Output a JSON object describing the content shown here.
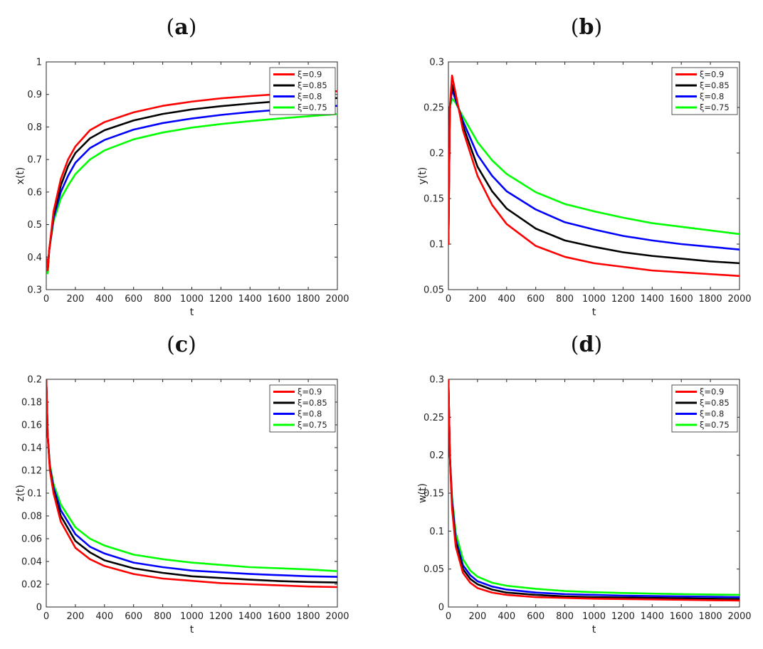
{
  "chart_data": [
    {
      "panel": "a",
      "type": "line",
      "xlabel": "t",
      "ylabel": "x(t)",
      "xlim": [
        0,
        2000
      ],
      "ylim": [
        0.3,
        1
      ],
      "xticks": [
        0,
        200,
        400,
        600,
        800,
        1000,
        1200,
        1400,
        1600,
        1800,
        2000
      ],
      "yticks": [
        0.3,
        0.4,
        0.5,
        0.6,
        0.7,
        0.8,
        0.9,
        1
      ],
      "ytick_labels": [
        "0.3",
        "0.4",
        "0.5",
        "0.6",
        "0.7",
        "0.8",
        "0.9",
        "1"
      ],
      "legend": "top-right",
      "series": [
        {
          "name": "ξ=0.9",
          "color": "#ff0000",
          "x": [
            0,
            10,
            20,
            50,
            100,
            150,
            200,
            300,
            400,
            600,
            800,
            1000,
            1200,
            1400,
            1600,
            1800,
            2000
          ],
          "y": [
            0.4,
            0.36,
            0.42,
            0.54,
            0.64,
            0.7,
            0.74,
            0.79,
            0.815,
            0.845,
            0.865,
            0.878,
            0.888,
            0.895,
            0.901,
            0.906,
            0.91
          ]
        },
        {
          "name": "ξ=0.85",
          "color": "#000000",
          "x": [
            0,
            10,
            20,
            50,
            100,
            150,
            200,
            300,
            400,
            600,
            800,
            1000,
            1200,
            1400,
            1600,
            1800,
            2000
          ],
          "y": [
            0.4,
            0.36,
            0.42,
            0.53,
            0.62,
            0.68,
            0.72,
            0.765,
            0.79,
            0.82,
            0.84,
            0.854,
            0.864,
            0.872,
            0.879,
            0.884,
            0.889
          ]
        },
        {
          "name": "ξ=0.8",
          "color": "#0000ff",
          "x": [
            0,
            10,
            20,
            50,
            100,
            150,
            200,
            300,
            400,
            600,
            800,
            1000,
            1200,
            1400,
            1600,
            1800,
            2000
          ],
          "y": [
            0.4,
            0.36,
            0.42,
            0.52,
            0.6,
            0.65,
            0.69,
            0.735,
            0.76,
            0.792,
            0.812,
            0.826,
            0.837,
            0.846,
            0.853,
            0.859,
            0.865
          ]
        },
        {
          "name": "ξ=0.75",
          "color": "#00ff00",
          "x": [
            0,
            10,
            20,
            50,
            100,
            150,
            200,
            300,
            400,
            600,
            800,
            1000,
            1200,
            1400,
            1600,
            1800,
            2000
          ],
          "y": [
            0.4,
            0.35,
            0.42,
            0.51,
            0.58,
            0.62,
            0.655,
            0.7,
            0.728,
            0.762,
            0.783,
            0.798,
            0.809,
            0.818,
            0.826,
            0.833,
            0.84
          ]
        }
      ]
    },
    {
      "panel": "b",
      "type": "line",
      "xlabel": "t",
      "ylabel": "y(t)",
      "xlim": [
        0,
        2000
      ],
      "ylim": [
        0.05,
        0.3
      ],
      "xticks": [
        0,
        200,
        400,
        600,
        800,
        1000,
        1200,
        1400,
        1600,
        1800,
        2000
      ],
      "yticks": [
        0.05,
        0.1,
        0.15,
        0.2,
        0.25,
        0.3
      ],
      "ytick_labels": [
        "0.05",
        "0.1",
        "0.15",
        "0.2",
        "0.25",
        "0.3"
      ],
      "legend": "top-right",
      "series": [
        {
          "name": "ξ=0.9",
          "color": "#ff0000",
          "x": [
            0,
            10,
            25,
            50,
            100,
            200,
            300,
            400,
            600,
            800,
            1000,
            1200,
            1400,
            1600,
            1800,
            2000
          ],
          "y": [
            0.1,
            0.25,
            0.285,
            0.265,
            0.225,
            0.175,
            0.143,
            0.122,
            0.098,
            0.086,
            0.079,
            0.075,
            0.071,
            0.069,
            0.067,
            0.065
          ]
        },
        {
          "name": "ξ=0.85",
          "color": "#000000",
          "x": [
            0,
            10,
            25,
            50,
            100,
            200,
            300,
            400,
            600,
            800,
            1000,
            1200,
            1400,
            1600,
            1800,
            2000
          ],
          "y": [
            0.1,
            0.25,
            0.275,
            0.262,
            0.23,
            0.185,
            0.158,
            0.139,
            0.117,
            0.104,
            0.097,
            0.091,
            0.087,
            0.084,
            0.081,
            0.079
          ]
        },
        {
          "name": "ξ=0.8",
          "color": "#0000ff",
          "x": [
            0,
            10,
            25,
            50,
            100,
            200,
            300,
            400,
            600,
            800,
            1000,
            1200,
            1400,
            1600,
            1800,
            2000
          ],
          "y": [
            0.1,
            0.25,
            0.27,
            0.258,
            0.235,
            0.198,
            0.175,
            0.158,
            0.138,
            0.124,
            0.116,
            0.109,
            0.104,
            0.1,
            0.097,
            0.094
          ]
        },
        {
          "name": "ξ=0.75",
          "color": "#00ff00",
          "x": [
            0,
            10,
            25,
            50,
            100,
            200,
            300,
            400,
            600,
            800,
            1000,
            1200,
            1400,
            1600,
            1800,
            2000
          ],
          "y": [
            0.1,
            0.25,
            0.26,
            0.255,
            0.24,
            0.212,
            0.192,
            0.177,
            0.157,
            0.144,
            0.136,
            0.129,
            0.123,
            0.119,
            0.115,
            0.111
          ]
        }
      ]
    },
    {
      "panel": "c",
      "type": "line",
      "xlabel": "t",
      "ylabel": "z(t)",
      "xlim": [
        0,
        2000
      ],
      "ylim": [
        0,
        0.2
      ],
      "xticks": [
        0,
        200,
        400,
        600,
        800,
        1000,
        1200,
        1400,
        1600,
        1800,
        2000
      ],
      "yticks": [
        0,
        0.02,
        0.04,
        0.06,
        0.08,
        0.1,
        0.12,
        0.14,
        0.16,
        0.18,
        0.2
      ],
      "ytick_labels": [
        "0",
        "0.02",
        "0.04",
        "0.06",
        "0.08",
        "0.1",
        "0.12",
        "0.14",
        "0.16",
        "0.18",
        "0.2"
      ],
      "legend": "top-right",
      "series": [
        {
          "name": "ξ=0.9",
          "color": "#ff0000",
          "x": [
            0,
            10,
            25,
            50,
            100,
            200,
            300,
            400,
            600,
            800,
            1000,
            1200,
            1400,
            1600,
            1800,
            2000
          ],
          "y": [
            0.2,
            0.15,
            0.12,
            0.1,
            0.075,
            0.052,
            0.042,
            0.036,
            0.029,
            0.025,
            0.023,
            0.021,
            0.02,
            0.019,
            0.018,
            0.0175
          ]
        },
        {
          "name": "ξ=0.85",
          "color": "#000000",
          "x": [
            0,
            10,
            25,
            50,
            100,
            200,
            300,
            400,
            600,
            800,
            1000,
            1200,
            1400,
            1600,
            1800,
            2000
          ],
          "y": [
            0.2,
            0.15,
            0.122,
            0.102,
            0.08,
            0.058,
            0.048,
            0.041,
            0.034,
            0.03,
            0.027,
            0.0255,
            0.024,
            0.0228,
            0.022,
            0.0215
          ]
        },
        {
          "name": "ξ=0.8",
          "color": "#0000ff",
          "x": [
            0,
            10,
            25,
            50,
            100,
            200,
            300,
            400,
            600,
            800,
            1000,
            1200,
            1400,
            1600,
            1800,
            2000
          ],
          "y": [
            0.2,
            0.15,
            0.123,
            0.105,
            0.085,
            0.064,
            0.053,
            0.047,
            0.039,
            0.035,
            0.032,
            0.0305,
            0.029,
            0.028,
            0.027,
            0.0265
          ]
        },
        {
          "name": "ξ=0.75",
          "color": "#00ff00",
          "x": [
            0,
            10,
            25,
            50,
            100,
            200,
            300,
            400,
            600,
            800,
            1000,
            1200,
            1400,
            1600,
            1800,
            2000
          ],
          "y": [
            0.2,
            0.15,
            0.125,
            0.108,
            0.09,
            0.07,
            0.06,
            0.054,
            0.046,
            0.042,
            0.039,
            0.037,
            0.035,
            0.034,
            0.033,
            0.0315
          ]
        }
      ]
    },
    {
      "panel": "d",
      "type": "line",
      "xlabel": "t",
      "ylabel": "w(t)",
      "xlim": [
        0,
        2000
      ],
      "ylim": [
        0,
        0.3
      ],
      "xticks": [
        0,
        200,
        400,
        600,
        800,
        1000,
        1200,
        1400,
        1600,
        1800,
        2000
      ],
      "yticks": [
        0,
        0.05,
        0.1,
        0.15,
        0.2,
        0.25,
        0.3
      ],
      "ytick_labels": [
        "0",
        "0.05",
        "0.1",
        "0.15",
        "0.2",
        "0.25",
        "0.3"
      ],
      "legend": "top-right",
      "series": [
        {
          "name": "ξ=0.9",
          "color": "#ff0000",
          "x": [
            0,
            10,
            25,
            50,
            100,
            150,
            200,
            300,
            400,
            600,
            800,
            1000,
            1200,
            1400,
            1600,
            1800,
            2000
          ],
          "y": [
            0.3,
            0.2,
            0.13,
            0.08,
            0.045,
            0.032,
            0.025,
            0.019,
            0.016,
            0.013,
            0.012,
            0.011,
            0.0105,
            0.01,
            0.0095,
            0.009,
            0.0085
          ]
        },
        {
          "name": "ξ=0.85",
          "color": "#000000",
          "x": [
            0,
            10,
            25,
            50,
            100,
            150,
            200,
            300,
            400,
            600,
            800,
            1000,
            1200,
            1400,
            1600,
            1800,
            2000
          ],
          "y": [
            0.3,
            0.2,
            0.135,
            0.085,
            0.05,
            0.037,
            0.03,
            0.023,
            0.019,
            0.016,
            0.014,
            0.013,
            0.0125,
            0.012,
            0.0115,
            0.011,
            0.0105
          ]
        },
        {
          "name": "ξ=0.8",
          "color": "#0000ff",
          "x": [
            0,
            10,
            25,
            50,
            100,
            150,
            200,
            300,
            400,
            600,
            800,
            1000,
            1200,
            1400,
            1600,
            1800,
            2000
          ],
          "y": [
            0.3,
            0.2,
            0.14,
            0.09,
            0.055,
            0.042,
            0.034,
            0.027,
            0.023,
            0.019,
            0.017,
            0.016,
            0.015,
            0.0145,
            0.014,
            0.0135,
            0.013
          ]
        },
        {
          "name": "ξ=0.75",
          "color": "#00ff00",
          "x": [
            0,
            10,
            25,
            50,
            100,
            150,
            200,
            300,
            400,
            600,
            800,
            1000,
            1200,
            1400,
            1600,
            1800,
            2000
          ],
          "y": [
            0.3,
            0.2,
            0.145,
            0.098,
            0.063,
            0.048,
            0.04,
            0.032,
            0.028,
            0.024,
            0.021,
            0.0195,
            0.0185,
            0.0177,
            0.017,
            0.0165,
            0.016
          ]
        }
      ]
    }
  ]
}
